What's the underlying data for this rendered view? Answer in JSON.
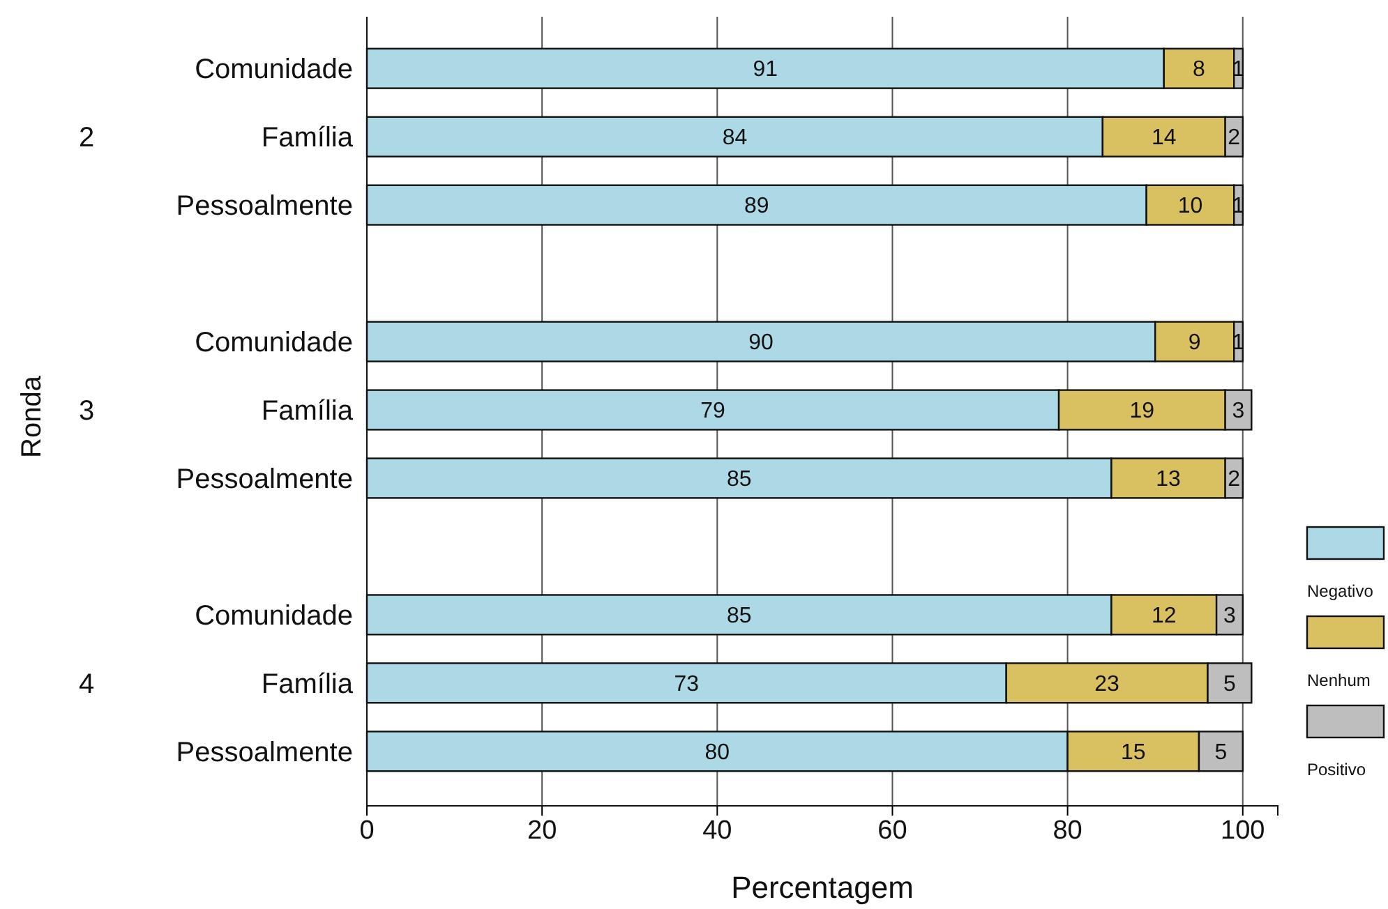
{
  "chart_data": {
    "type": "bar",
    "orientation": "horizontal",
    "stacked": true,
    "xlabel": "Percentagem",
    "ylabel": "Ronda",
    "categories": [
      "Comunidade",
      "Família",
      "Pessoalmente",
      null,
      "Comunidade",
      "Família",
      "Pessoalmente",
      null,
      "Comunidade",
      "Família",
      "Pessoalmente"
    ],
    "series": [
      {
        "name": "Negativo",
        "color": "#add8e6",
        "values": [
          91,
          84,
          89,
          null,
          90,
          79,
          85,
          null,
          85,
          73,
          80
        ]
      },
      {
        "name": "Nenhum",
        "color": "#d9c060",
        "values": [
          8,
          14,
          10,
          null,
          9,
          19,
          13,
          null,
          12,
          23,
          15
        ]
      },
      {
        "name": "Positivo",
        "color": "#bebebe",
        "values": [
          1,
          2,
          1,
          null,
          1,
          3,
          2,
          null,
          3,
          5,
          5
        ]
      }
    ],
    "annotations": [
      "2",
      "3",
      "4"
    ],
    "xlim": [
      0,
      104
    ],
    "xticks": [
      0,
      20,
      40,
      60,
      80,
      100
    ],
    "grid": "x",
    "legend": "right",
    "data_labels": true
  }
}
